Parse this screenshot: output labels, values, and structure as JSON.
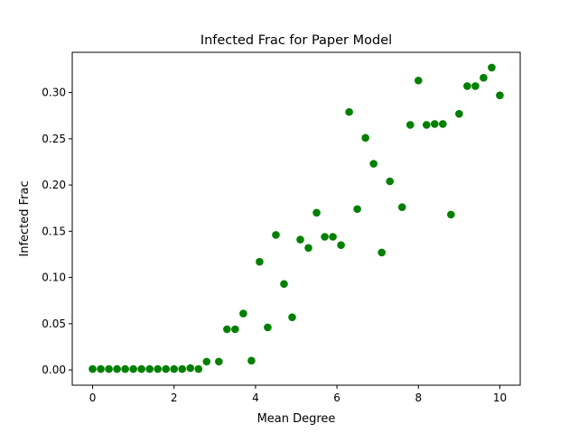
{
  "chart_data": {
    "type": "scatter",
    "title": "Infected Frac for Paper Model",
    "xlabel": "Mean Degree",
    "ylabel": "Infected Frac",
    "xlim": [
      -0.5,
      10.5
    ],
    "ylim": [
      -0.0165,
      0.3435
    ],
    "xticks": [
      0,
      2,
      4,
      6,
      8,
      10
    ],
    "xtick_labels": [
      "0",
      "2",
      "4",
      "6",
      "8",
      "10"
    ],
    "yticks": [
      0.0,
      0.05,
      0.1,
      0.15,
      0.2,
      0.25,
      0.3
    ],
    "ytick_labels": [
      "0.00",
      "0.05",
      "0.10",
      "0.15",
      "0.20",
      "0.25",
      "0.30"
    ],
    "grid": false,
    "marker_color": "#008000",
    "series": [
      {
        "points": [
          [
            0.0,
            0.001
          ],
          [
            0.2,
            0.001
          ],
          [
            0.4,
            0.001
          ],
          [
            0.6,
            0.001
          ],
          [
            0.8,
            0.001
          ],
          [
            1.0,
            0.001
          ],
          [
            1.2,
            0.001
          ],
          [
            1.4,
            0.001
          ],
          [
            1.6,
            0.001
          ],
          [
            1.8,
            0.001
          ],
          [
            2.0,
            0.001
          ],
          [
            2.2,
            0.001
          ],
          [
            2.4,
            0.002
          ],
          [
            2.6,
            0.001
          ],
          [
            2.8,
            0.009
          ],
          [
            3.1,
            0.009
          ],
          [
            3.3,
            0.044
          ],
          [
            3.5,
            0.044
          ],
          [
            3.7,
            0.061
          ],
          [
            3.9,
            0.01
          ],
          [
            4.1,
            0.117
          ],
          [
            4.3,
            0.046
          ],
          [
            4.5,
            0.146
          ],
          [
            4.7,
            0.093
          ],
          [
            4.9,
            0.057
          ],
          [
            5.1,
            0.141
          ],
          [
            5.3,
            0.132
          ],
          [
            5.5,
            0.17
          ],
          [
            5.7,
            0.144
          ],
          [
            5.9,
            0.144
          ],
          [
            6.1,
            0.135
          ],
          [
            6.3,
            0.279
          ],
          [
            6.5,
            0.174
          ],
          [
            6.7,
            0.251
          ],
          [
            6.9,
            0.223
          ],
          [
            7.1,
            0.127
          ],
          [
            7.3,
            0.204
          ],
          [
            7.6,
            0.176
          ],
          [
            7.8,
            0.265
          ],
          [
            8.0,
            0.313
          ],
          [
            8.2,
            0.265
          ],
          [
            8.4,
            0.266
          ],
          [
            8.6,
            0.266
          ],
          [
            8.8,
            0.168
          ],
          [
            9.0,
            0.277
          ],
          [
            9.2,
            0.307
          ],
          [
            9.4,
            0.307
          ],
          [
            9.6,
            0.316
          ],
          [
            9.8,
            0.327
          ],
          [
            10.0,
            0.297
          ]
        ]
      }
    ]
  }
}
